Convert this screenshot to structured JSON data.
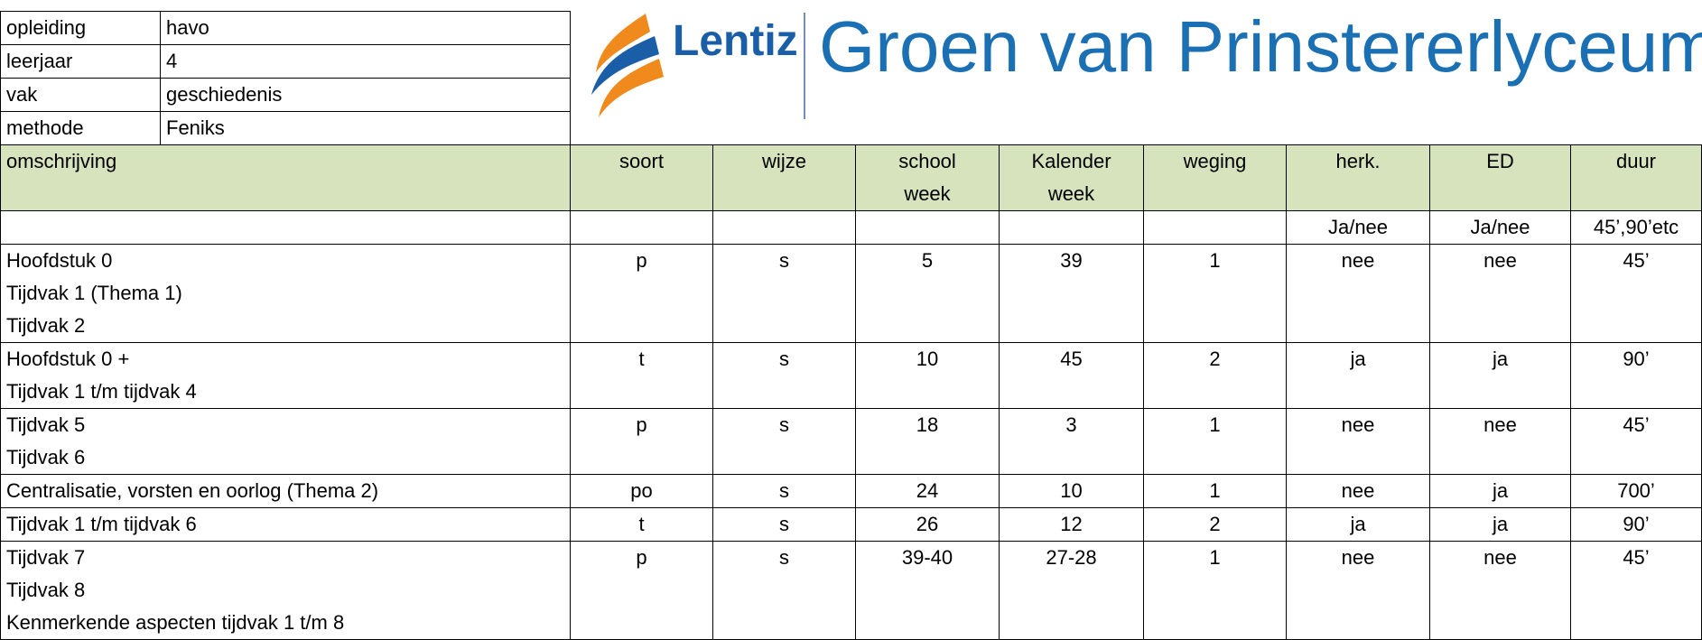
{
  "info": [
    [
      "opleiding",
      "havo"
    ],
    [
      "leerjaar",
      "4"
    ],
    [
      "vak",
      "geschiedenis"
    ],
    [
      "methode",
      "Feniks"
    ]
  ],
  "logo": {
    "brand": "Lentiz",
    "school": "Groen van Prinstererlyceum"
  },
  "table": {
    "header": [
      "omschrijving",
      "soort",
      "wijze",
      "school week",
      "Kalender week",
      "weging",
      "herk.",
      "ED",
      "duur"
    ],
    "subheader": [
      "",
      "",
      "",
      "",
      "",
      "",
      "Ja/nee",
      "Ja/nee",
      "45’,90’etc"
    ],
    "rows": [
      {
        "description": [
          "Hoofdstuk 0",
          "Tijdvak 1 (Thema 1)",
          "Tijdvak 2"
        ],
        "cells": [
          "p",
          "s",
          "5",
          "39",
          "1",
          "nee",
          "nee",
          "45’"
        ]
      },
      {
        "description": [
          "Hoofdstuk 0 +",
          "Tijdvak 1 t/m tijdvak 4"
        ],
        "cells": [
          "t",
          "s",
          "10",
          "45",
          "2",
          "ja",
          "ja",
          "90’"
        ]
      },
      {
        "description": [
          "Tijdvak 5",
          "Tijdvak 6"
        ],
        "cells": [
          "p",
          "s",
          "18",
          "3",
          "1",
          "nee",
          "nee",
          "45’"
        ]
      },
      {
        "description": [
          "Centralisatie, vorsten en oorlog (Thema 2)"
        ],
        "cells": [
          "po",
          "s",
          "24",
          "10",
          "1",
          "nee",
          "ja",
          "700’"
        ]
      },
      {
        "description": [
          "Tijdvak 1 t/m tijdvak 6"
        ],
        "cells": [
          "t",
          "s",
          "26",
          "12",
          "2",
          "ja",
          "ja",
          "90’"
        ]
      },
      {
        "description": [
          "Tijdvak 7",
          "Tijdvak 8",
          "Kenmerkende aspecten tijdvak 1 t/m 8"
        ],
        "cells": [
          "p",
          "s",
          "39-40",
          "27-28",
          "1",
          "nee",
          "nee",
          "45’"
        ]
      }
    ]
  }
}
